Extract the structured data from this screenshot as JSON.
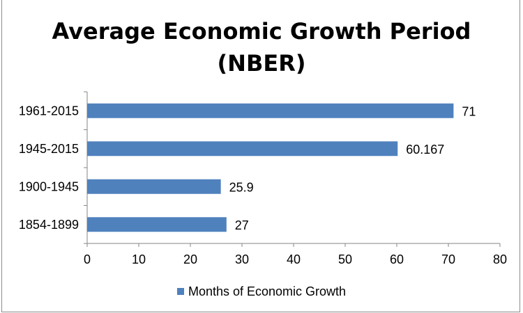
{
  "chart_data": {
    "type": "bar",
    "orientation": "horizontal",
    "title": "Average Economic Growth Period (NBER)",
    "title_lines": [
      "Average Economic Growth Period",
      "(NBER)"
    ],
    "categories": [
      "1961-2015",
      "1945-2015",
      "1900-1945",
      "1854-1899"
    ],
    "series": [
      {
        "name": "Months of Economic Growth",
        "values": [
          71,
          60.167,
          25.9,
          27
        ],
        "data_labels": [
          "71",
          "60.167",
          "25.9",
          "27"
        ],
        "color": "#4f81bd"
      }
    ],
    "xlim": [
      0,
      80
    ],
    "x_ticks": [
      "0",
      "10",
      "20",
      "30",
      "40",
      "50",
      "60",
      "70",
      "80"
    ],
    "xlabel": "",
    "ylabel": "",
    "grid": false,
    "legend_position": "bottom"
  }
}
